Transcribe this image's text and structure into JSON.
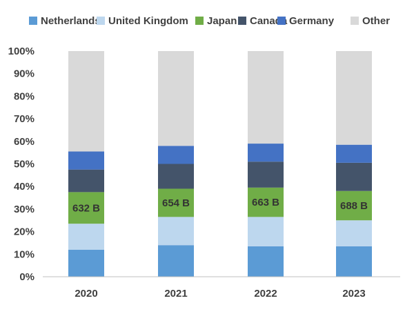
{
  "chart_data": {
    "type": "bar",
    "stacked": true,
    "normalized": true,
    "categories": [
      "2020",
      "2021",
      "2022",
      "2023"
    ],
    "series": [
      {
        "name": "Netherlands",
        "color": "#5b9bd5",
        "values": [
          12,
          14,
          13.5,
          13.5
        ]
      },
      {
        "name": "United Kingdom",
        "color": "#bdd7ee",
        "values": [
          11.5,
          12.5,
          13,
          11.5
        ]
      },
      {
        "name": "Japan",
        "color": "#70ad47",
        "values": [
          14,
          12.5,
          13,
          13
        ]
      },
      {
        "name": "Canada",
        "color": "#44546a",
        "values": [
          10,
          11,
          11.5,
          12.5
        ]
      },
      {
        "name": "Germany",
        "color": "#4472c4",
        "values": [
          8,
          8,
          8,
          8
        ]
      },
      {
        "name": "Other",
        "color": "#d9d9d9",
        "values": [
          44.5,
          42,
          41,
          41.5
        ]
      }
    ],
    "data_labels": {
      "series": "Japan",
      "labels": [
        "632 B",
        "654 B",
        "663 B",
        "688 B"
      ]
    },
    "ylim": [
      0,
      100
    ],
    "y_ticks": [
      "0%",
      "10%",
      "20%",
      "30%",
      "40%",
      "50%",
      "60%",
      "70%",
      "80%",
      "90%",
      "100%"
    ],
    "legend": "top",
    "grid": false
  }
}
